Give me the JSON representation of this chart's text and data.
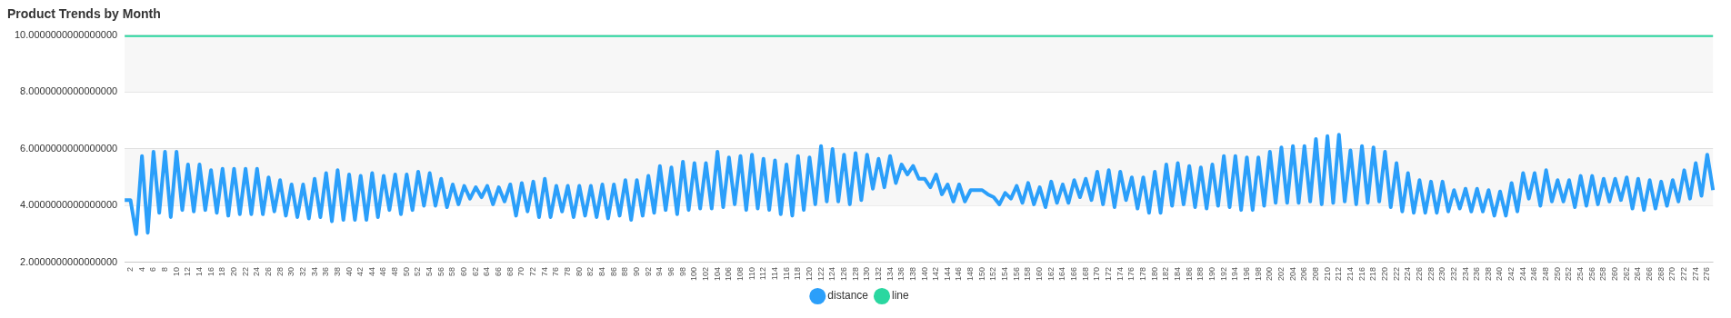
{
  "chart_data": {
    "type": "line",
    "title": "Product Trends by Month",
    "categories": [
      null,
      "2",
      null,
      "4",
      null,
      "6",
      null,
      "8",
      null,
      "10",
      null,
      "12",
      null,
      "14",
      null,
      "16",
      null,
      "18",
      null,
      "20",
      null,
      "22",
      null,
      "24",
      null,
      "26",
      null,
      "28",
      null,
      "30",
      null,
      "32",
      null,
      "34",
      null,
      "36",
      null,
      "38",
      null,
      "40",
      null,
      "42",
      null,
      "44",
      null,
      "46",
      null,
      "48",
      null,
      "50",
      null,
      "52",
      null,
      "54",
      null,
      "56",
      null,
      "58",
      null,
      "60",
      null,
      "62",
      null,
      "64",
      null,
      "66",
      null,
      "68",
      null,
      "70",
      null,
      "72",
      null,
      "74",
      null,
      "76",
      null,
      "78",
      null,
      "80",
      null,
      "82",
      null,
      "84",
      null,
      "86",
      null,
      "88",
      null,
      "90",
      null,
      "92",
      null,
      "94",
      null,
      "96",
      null,
      "98",
      null,
      "100",
      null,
      "102",
      null,
      "104",
      null,
      "106",
      null,
      "108",
      null,
      "110",
      null,
      "112",
      null,
      "114",
      null,
      "116",
      null,
      "118",
      null,
      "120",
      null,
      "122",
      null,
      "124",
      null,
      "126",
      null,
      "128",
      null,
      "130",
      null,
      "132",
      null,
      "134",
      null,
      "136",
      null,
      "138",
      null,
      "140",
      null,
      "142",
      null,
      "144",
      null,
      "146",
      null,
      "148",
      null,
      "150",
      null,
      "152",
      null,
      "154",
      null,
      "156",
      null,
      "158",
      null,
      "160",
      null,
      "162",
      null,
      "164",
      null,
      "166",
      null,
      "168",
      null,
      "170",
      null,
      "172",
      null,
      "174",
      null,
      "176",
      null,
      "178",
      null,
      "180",
      null,
      "182",
      null,
      "184",
      null,
      "186",
      null,
      "188",
      null,
      "190",
      null,
      "192",
      null,
      "194",
      null,
      "196",
      null,
      "198",
      null,
      "200",
      null,
      "202",
      null,
      "204",
      null,
      "206",
      null,
      "208",
      null,
      "210",
      null,
      "212",
      null,
      "214",
      null,
      "216",
      null,
      "218",
      null,
      "220",
      null,
      "222",
      null,
      "224",
      null,
      "226",
      null,
      "228",
      null,
      "230",
      null,
      "232",
      null,
      "234",
      null,
      "236",
      null,
      "238",
      null,
      "240",
      null,
      "242",
      null,
      "244",
      null,
      "246",
      null,
      "248",
      null,
      "250",
      null,
      "252",
      null,
      "254",
      null,
      "256",
      null,
      "258",
      null,
      "260",
      null,
      "262",
      null,
      "264",
      null,
      "266",
      null,
      "268",
      null,
      "270",
      null,
      "272",
      null,
      "274",
      null,
      "276",
      null
    ],
    "series": [
      {
        "name": "distance",
        "color": "#2b9ffa",
        "values": [
          4.2,
          4.2,
          3.0,
          5.75,
          3.05,
          5.9,
          3.75,
          5.9,
          3.6,
          5.9,
          3.85,
          5.45,
          3.8,
          5.45,
          3.85,
          5.25,
          3.75,
          5.3,
          3.65,
          5.3,
          3.7,
          5.3,
          3.7,
          5.3,
          3.7,
          5.0,
          3.8,
          4.9,
          3.65,
          4.75,
          3.6,
          4.75,
          3.55,
          4.95,
          3.6,
          5.15,
          3.45,
          5.25,
          3.5,
          5.1,
          3.5,
          5.05,
          3.5,
          5.15,
          3.6,
          5.05,
          3.85,
          5.1,
          3.7,
          5.1,
          3.85,
          5.2,
          4.0,
          5.15,
          4.0,
          4.95,
          3.95,
          4.75,
          4.05,
          4.7,
          4.25,
          4.65,
          4.3,
          4.7,
          4.05,
          4.65,
          4.15,
          4.75,
          3.65,
          4.8,
          3.8,
          4.85,
          3.6,
          4.95,
          3.6,
          4.7,
          3.8,
          4.7,
          3.6,
          4.7,
          3.65,
          4.7,
          3.6,
          4.75,
          3.55,
          4.75,
          3.65,
          4.9,
          3.5,
          4.9,
          3.65,
          5.05,
          3.75,
          5.4,
          3.85,
          5.35,
          3.7,
          5.55,
          3.85,
          5.5,
          3.9,
          5.5,
          3.9,
          5.9,
          3.95,
          5.7,
          4.05,
          5.75,
          3.85,
          5.8,
          3.9,
          5.65,
          3.85,
          5.6,
          3.7,
          5.45,
          3.65,
          5.75,
          3.85,
          5.7,
          4.05,
          6.1,
          4.15,
          6.0,
          4.15,
          5.8,
          4.05,
          5.85,
          4.2,
          5.8,
          4.6,
          5.65,
          4.65,
          5.75,
          4.8,
          5.45,
          5.1,
          5.4,
          4.95,
          4.95,
          4.65,
          5.1,
          4.4,
          4.75,
          4.15,
          4.75,
          4.15,
          4.55,
          4.55,
          4.55,
          4.4,
          4.3,
          4.05,
          4.45,
          4.25,
          4.7,
          4.1,
          4.8,
          4.05,
          4.65,
          3.95,
          4.85,
          4.1,
          4.75,
          4.1,
          4.9,
          4.3,
          4.95,
          4.2,
          5.2,
          4.05,
          5.25,
          3.95,
          5.2,
          4.2,
          5.0,
          3.9,
          5.0,
          3.75,
          5.2,
          3.75,
          5.45,
          4.0,
          5.5,
          4.05,
          5.4,
          3.95,
          5.35,
          3.9,
          5.45,
          4.0,
          5.75,
          3.95,
          5.75,
          3.85,
          5.7,
          3.85,
          5.7,
          4.0,
          5.9,
          4.1,
          6.05,
          4.1,
          6.1,
          4.1,
          6.1,
          4.15,
          6.35,
          4.05,
          6.45,
          4.1,
          6.5,
          4.15,
          5.95,
          4.05,
          6.1,
          4.1,
          6.05,
          4.15,
          5.9,
          3.95,
          5.5,
          3.8,
          5.15,
          3.75,
          4.9,
          3.75,
          4.85,
          3.75,
          4.85,
          3.8,
          4.55,
          3.9,
          4.6,
          3.8,
          4.6,
          3.8,
          4.55,
          3.65,
          4.5,
          3.65,
          4.8,
          3.8,
          5.15,
          4.25,
          5.15,
          4.0,
          5.25,
          4.15,
          4.9,
          4.15,
          4.9,
          3.95,
          5.05,
          4.0,
          5.05,
          4.05,
          4.95,
          4.15,
          4.95,
          4.2,
          5.0,
          3.9,
          4.95,
          3.85,
          4.9,
          3.9,
          4.85,
          4.0,
          4.9,
          4.15,
          5.25,
          4.25,
          5.5,
          4.35,
          5.8,
          4.55
        ]
      },
      {
        "name": "line",
        "color": "#2ad7a0",
        "values": [
          10,
          10,
          10,
          10,
          10,
          10,
          10,
          10,
          10,
          10,
          10,
          10,
          10,
          10,
          10,
          10,
          10,
          10,
          10,
          10,
          10,
          10,
          10,
          10,
          10,
          10,
          10,
          10,
          10,
          10,
          10,
          10,
          10,
          10,
          10,
          10,
          10,
          10,
          10,
          10,
          10,
          10,
          10,
          10,
          10,
          10,
          10,
          10,
          10,
          10,
          10,
          10,
          10,
          10,
          10,
          10,
          10,
          10,
          10,
          10,
          10,
          10,
          10,
          10,
          10,
          10,
          10,
          10,
          10,
          10,
          10,
          10,
          10,
          10,
          10,
          10,
          10,
          10,
          10,
          10,
          10,
          10,
          10,
          10,
          10,
          10,
          10,
          10,
          10,
          10,
          10,
          10,
          10,
          10,
          10,
          10,
          10,
          10,
          10,
          10,
          10,
          10,
          10,
          10,
          10,
          10,
          10,
          10,
          10,
          10,
          10,
          10,
          10,
          10,
          10,
          10,
          10,
          10,
          10,
          10,
          10,
          10,
          10,
          10,
          10,
          10,
          10,
          10,
          10,
          10,
          10,
          10,
          10,
          10,
          10,
          10,
          10,
          10,
          10,
          10,
          10,
          10,
          10,
          10,
          10,
          10,
          10,
          10,
          10,
          10,
          10,
          10,
          10,
          10,
          10,
          10,
          10,
          10,
          10,
          10,
          10,
          10,
          10,
          10,
          10,
          10,
          10,
          10,
          10,
          10,
          10,
          10,
          10,
          10,
          10,
          10,
          10,
          10,
          10,
          10,
          10,
          10,
          10,
          10,
          10,
          10,
          10,
          10,
          10,
          10,
          10,
          10,
          10,
          10,
          10,
          10,
          10,
          10,
          10,
          10,
          10,
          10,
          10,
          10,
          10,
          10,
          10,
          10,
          10,
          10,
          10,
          10,
          10,
          10,
          10,
          10,
          10,
          10,
          10,
          10,
          10,
          10,
          10,
          10,
          10,
          10,
          10,
          10,
          10,
          10,
          10,
          10,
          10,
          10,
          10,
          10,
          10,
          10,
          10,
          10,
          10,
          10,
          10,
          10,
          10,
          10,
          10,
          10,
          10,
          10,
          10,
          10,
          10,
          10,
          10,
          10,
          10,
          10,
          10,
          10,
          10,
          10,
          10,
          10,
          10,
          10,
          10,
          10,
          10,
          10,
          10,
          10,
          10,
          10,
          10,
          10,
          10
        ]
      }
    ],
    "ylim": [
      2,
      10
    ],
    "yticks": [
      {
        "value": 2,
        "label": "2.0000000000000000"
      },
      {
        "value": 4,
        "label": "4.0000000000000000"
      },
      {
        "value": 6,
        "label": "6.0000000000000000"
      },
      {
        "value": 8,
        "label": "8.0000000000000000"
      },
      {
        "value": 10,
        "label": "10.0000000000000000"
      }
    ],
    "grid": "y",
    "legend": "bottom",
    "marker": "none",
    "line_style": "solid"
  }
}
